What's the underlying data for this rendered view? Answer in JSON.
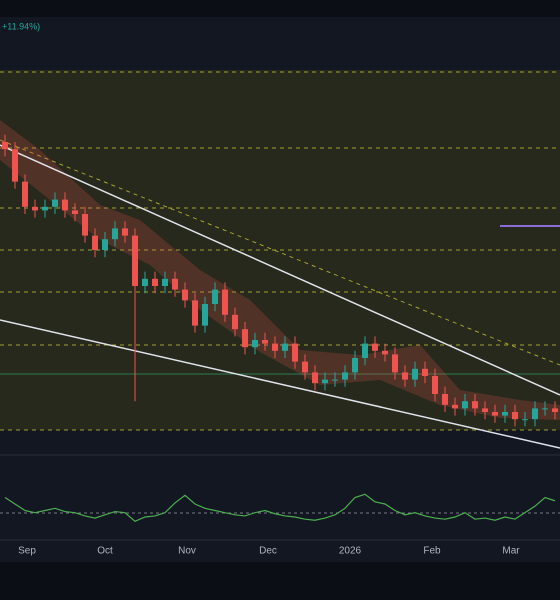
{
  "header": {
    "change": "+11.94%)"
  },
  "chart_data": [
    {
      "type": "candlestick",
      "x": [
        0,
        1,
        2,
        3,
        4,
        5,
        6,
        7,
        8,
        9,
        10,
        11,
        12,
        13,
        14,
        15,
        16,
        17,
        18,
        19,
        20,
        21,
        22,
        23,
        24,
        25,
        26,
        27,
        28,
        29,
        30,
        31,
        32,
        33,
        34,
        35,
        36,
        37,
        38,
        39,
        40,
        41,
        42,
        43,
        44,
        45,
        46,
        47,
        48,
        49,
        50,
        51,
        52,
        53,
        54,
        55
      ],
      "open": [
        80,
        78,
        69,
        62,
        61,
        62,
        64,
        61,
        60,
        54,
        50,
        53,
        56,
        54,
        40,
        42,
        40,
        42,
        39,
        36,
        29,
        35,
        39,
        32,
        28,
        23,
        25,
        24,
        22,
        24,
        19,
        16,
        13,
        14,
        14,
        16,
        20,
        24,
        22,
        21,
        16,
        14,
        17,
        15,
        10,
        7,
        6,
        8,
        6,
        5,
        4,
        5,
        3,
        3,
        6,
        6
      ],
      "high": [
        82,
        80,
        71,
        64,
        64,
        66,
        66,
        63,
        62,
        56,
        55,
        58,
        58,
        56,
        44,
        44,
        44,
        44,
        41,
        38,
        37,
        41,
        41,
        34,
        30,
        27,
        27,
        26,
        26,
        26,
        21,
        18,
        16,
        16,
        18,
        22,
        26,
        26,
        24,
        23,
        18,
        19,
        19,
        17,
        12,
        9,
        10,
        10,
        8,
        7,
        7,
        7,
        5,
        8,
        8,
        8
      ],
      "low": [
        76,
        67,
        60,
        59,
        59,
        60,
        59,
        58,
        52,
        48,
        48,
        51,
        52,
        8,
        38,
        38,
        38,
        37,
        34,
        27,
        27,
        33,
        30,
        26,
        21,
        21,
        22,
        20,
        20,
        17,
        14,
        11,
        11,
        12,
        12,
        14,
        18,
        20,
        19,
        14,
        12,
        12,
        13,
        8,
        5,
        4,
        4,
        4,
        3,
        2,
        2,
        1,
        1,
        1,
        4,
        3
      ],
      "close": [
        78,
        69,
        62,
        61,
        62,
        64,
        61,
        60,
        54,
        50,
        53,
        56,
        54,
        40,
        42,
        40,
        42,
        39,
        36,
        29,
        35,
        39,
        32,
        28,
        23,
        25,
        24,
        22,
        24,
        19,
        16,
        13,
        14,
        14,
        16,
        20,
        24,
        22,
        21,
        16,
        14,
        17,
        15,
        10,
        7,
        6,
        8,
        6,
        5,
        4,
        5,
        3,
        3,
        6,
        6,
        5
      ],
      "up_color": "#26a69a",
      "down_color": "#ef5350",
      "xlim": [
        -0.5,
        55.5
      ],
      "ylim": [
        0,
        100
      ],
      "xticks": [
        {
          "value": 2.2,
          "label": "Sep"
        },
        {
          "value": 10,
          "label": "Oct"
        },
        {
          "value": 18.2,
          "label": "Nov"
        },
        {
          "value": 26.3,
          "label": "Dec"
        },
        {
          "value": 34.5,
          "label": "2026"
        },
        {
          "value": 42.7,
          "label": "Feb"
        },
        {
          "value": 50.6,
          "label": "Mar"
        }
      ]
    },
    {
      "type": "line",
      "x": [
        0,
        1,
        2,
        3,
        4,
        5,
        6,
        7,
        8,
        9,
        10,
        11,
        12,
        13,
        14,
        15,
        16,
        17,
        18,
        19,
        20,
        21,
        22,
        23,
        24,
        25,
        26,
        27,
        28,
        29,
        30,
        31,
        32,
        33,
        34,
        35,
        36,
        37,
        38,
        39,
        40,
        41,
        42,
        43,
        44,
        45,
        46,
        47,
        48,
        49,
        50,
        51,
        52,
        53,
        54,
        55
      ],
      "values": [
        50,
        44,
        38,
        36,
        38,
        40,
        37,
        36,
        33,
        31,
        34,
        37,
        36,
        28,
        32,
        33,
        36,
        45,
        52,
        44,
        40,
        38,
        36,
        34,
        33,
        36,
        38,
        35,
        33,
        32,
        30,
        29,
        31,
        34,
        40,
        50,
        53,
        46,
        44,
        38,
        34,
        36,
        33,
        31,
        30,
        32,
        36,
        30,
        31,
        29,
        32,
        30,
        36,
        42,
        50,
        47
      ],
      "color": "#4caf50",
      "xlim": [
        -0.5,
        55.5
      ],
      "ylim": [
        20,
        80
      ]
    }
  ]
}
